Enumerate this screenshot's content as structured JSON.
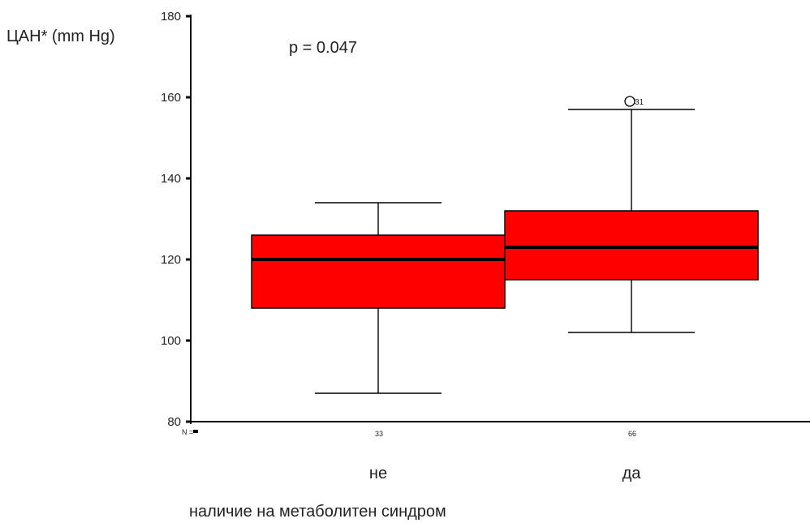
{
  "chart_data": {
    "type": "box",
    "ylabel": "ЦАН* (mm Hg)",
    "xlabel": "наличие на метаболитен синдром",
    "annotation": "p = 0.047",
    "ylim": [
      80,
      180
    ],
    "yticks": [
      80,
      100,
      120,
      140,
      160,
      180
    ],
    "n_label": "N =",
    "categories": [
      "не",
      "да"
    ],
    "n": [
      "33",
      "66"
    ],
    "boxes": [
      {
        "category": "не",
        "whisker_low": 87,
        "q1": 108,
        "median": 120,
        "q3": 126,
        "whisker_high": 134,
        "outliers": []
      },
      {
        "category": "да",
        "whisker_low": 102,
        "q1": 115,
        "median": 123,
        "q3": 132,
        "whisker_high": 157,
        "outliers": [
          {
            "value": 159,
            "label": "31"
          }
        ]
      }
    ],
    "box_color": "#ff0000",
    "grid": false
  }
}
